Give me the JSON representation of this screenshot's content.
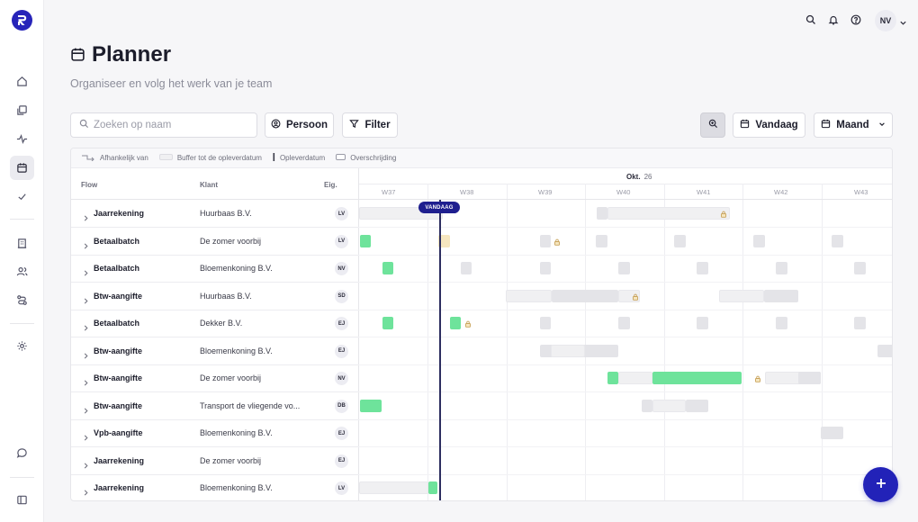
{
  "colors": {
    "brand": "#2724b9",
    "today": "#1f1f8f",
    "bar_done": "#6ee39b",
    "bar_planned": "#e4e4e8",
    "bar_buffer": "#f0f0f2",
    "bar_overdue": "#f6e6bf"
  },
  "topbar": {
    "user_initials": "NV"
  },
  "header": {
    "title": "Planner",
    "subtitle": "Organiseer en volg het werk van je team"
  },
  "toolbar": {
    "search_placeholder": "Zoeken op naam",
    "person_label": "Persoon",
    "filter_label": "Filter",
    "today_label": "Vandaag",
    "view_label": "Maand"
  },
  "legend": {
    "dependent": "Afhankelijk van",
    "buffer": "Buffer tot de opleverdatum",
    "due": "Opleverdatum",
    "overrun": "Overschrijding"
  },
  "columns": {
    "flow": "Flow",
    "klant": "Klant",
    "eig": "Eig."
  },
  "timeline": {
    "month": "Okt.",
    "month_day": "26",
    "weeks": [
      "W37",
      "W38",
      "W39",
      "W40",
      "W41",
      "W42",
      "W43"
    ],
    "today_label": "VANDAAG"
  },
  "rows": [
    {
      "flow": "Jaarrekening",
      "klant": "Huurbaas B.V.",
      "eig": "LV"
    },
    {
      "flow": "Betaalbatch",
      "klant": "De zomer voorbij",
      "eig": "LV"
    },
    {
      "flow": "Betaalbatch",
      "klant": "Bloemenkoning B.V.",
      "eig": "NV"
    },
    {
      "flow": "Btw-aangifte",
      "klant": "Huurbaas B.V.",
      "eig": "SD"
    },
    {
      "flow": "Betaalbatch",
      "klant": "Dekker B.V.",
      "eig": "EJ"
    },
    {
      "flow": "Btw-aangifte",
      "klant": "Bloemenkoning B.V.",
      "eig": "EJ"
    },
    {
      "flow": "Btw-aangifte",
      "klant": "De zomer voorbij",
      "eig": "NV"
    },
    {
      "flow": "Btw-aangifte",
      "klant": "Transport de vliegende vo...",
      "eig": "DB"
    },
    {
      "flow": "Vpb-aangifte",
      "klant": "Bloemenkoning B.V.",
      "eig": "EJ"
    },
    {
      "flow": "Jaarrekening",
      "klant": "De zomer voorbij",
      "eig": "EJ"
    },
    {
      "flow": "Jaarrekening",
      "klant": "Bloemenkoning B.V.",
      "eig": "LV"
    }
  ]
}
